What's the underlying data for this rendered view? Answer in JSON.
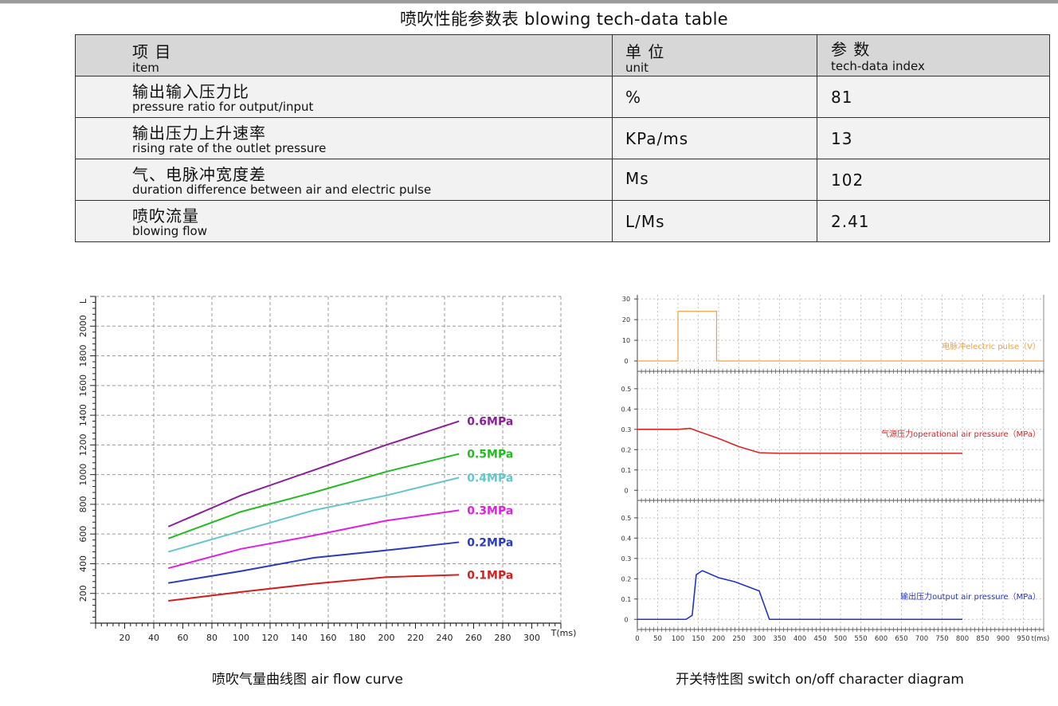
{
  "document": {
    "title": "喷吹性能参数表  blowing tech-data table"
  },
  "table": {
    "headers": [
      {
        "zh": "项  目",
        "en": "item"
      },
      {
        "zh": "单  位",
        "en": "unit"
      },
      {
        "zh": "参  数",
        "en": "tech-data index"
      }
    ],
    "rows": [
      {
        "zh": "输出输入压力比",
        "en": "pressure ratio for output/input",
        "unit": "%",
        "value": "81"
      },
      {
        "zh": "输出压力上升速率",
        "en": "rising rate of the outlet pressure",
        "unit": "KPa/ms",
        "value": "13"
      },
      {
        "zh": "气、电脉冲宽度差",
        "en": "duration difference between air and electric pulse",
        "unit": "Ms",
        "value": "102"
      },
      {
        "zh": "喷吹流量",
        "en": "blowing flow",
        "unit": "L/Ms",
        "value": "2.41"
      }
    ]
  },
  "chart_data": [
    {
      "type": "line",
      "caption": "喷吹气量曲线图  air flow curve",
      "ylabel": "L",
      "xlabel": "T(ms)",
      "xlim": [
        0,
        320
      ],
      "ylim": [
        0,
        2200
      ],
      "x_ticks": [
        20,
        40,
        60,
        80,
        100,
        120,
        140,
        160,
        180,
        200,
        220,
        240,
        260,
        280,
        300
      ],
      "y_ticks": [
        200,
        400,
        600,
        800,
        1000,
        1200,
        1400,
        1600,
        1800,
        2000
      ],
      "grid": true,
      "x": [
        50,
        100,
        150,
        200,
        250
      ],
      "series": [
        {
          "name": "0.6MPa",
          "color": "#8b1f99",
          "values": [
            650,
            860,
            1030,
            1200,
            1360
          ]
        },
        {
          "name": "0.5MPa",
          "color": "#22bb22",
          "values": [
            570,
            750,
            880,
            1020,
            1140
          ]
        },
        {
          "name": "0.4MPa",
          "color": "#66c6cc",
          "values": [
            480,
            620,
            760,
            860,
            980
          ]
        },
        {
          "name": "0.3MPa",
          "color": "#e020e0",
          "values": [
            370,
            500,
            590,
            690,
            760
          ]
        },
        {
          "name": "0.2MPa",
          "color": "#2a3cbb",
          "values": [
            270,
            350,
            440,
            490,
            545
          ]
        },
        {
          "name": "0.1MPa",
          "color": "#d02020",
          "values": [
            150,
            210,
            265,
            310,
            325
          ]
        }
      ]
    },
    {
      "type": "line",
      "caption": "开关特性图  switch on/off character diagram",
      "xlabel": "t(ms)",
      "xlim": [
        0,
        1000
      ],
      "x_ticks": [
        0,
        50,
        100,
        150,
        200,
        250,
        300,
        350,
        400,
        450,
        500,
        550,
        600,
        650,
        700,
        750,
        800,
        850,
        900,
        950
      ],
      "grid": true,
      "panels": [
        {
          "name": "电脉冲electric pulse（V）",
          "color": "#f0a040",
          "ylim": [
            -5,
            32
          ],
          "y_ticks": [
            0,
            10,
            20,
            30
          ],
          "x": [
            0,
            100,
            100,
            195,
            195,
            1000
          ],
          "values": [
            0,
            0,
            24,
            24,
            0,
            0
          ]
        },
        {
          "name": "气源压力operational air pressure（MPa）",
          "color": "#dd2222",
          "ylim": [
            -0.05,
            0.57
          ],
          "y_ticks": [
            0,
            0.1,
            0.2,
            0.3,
            0.4,
            0.5
          ],
          "x": [
            0,
            100,
            130,
            150,
            200,
            250,
            300,
            350,
            800
          ],
          "values": [
            0.3,
            0.3,
            0.305,
            0.29,
            0.255,
            0.215,
            0.185,
            0.182,
            0.182
          ]
        },
        {
          "name": "输出压力output air pressure（MPa）",
          "color": "#2233cc",
          "ylim": [
            -0.05,
            0.57
          ],
          "y_ticks": [
            0,
            0.1,
            0.2,
            0.3,
            0.4,
            0.5
          ],
          "x": [
            0,
            120,
            135,
            145,
            160,
            200,
            240,
            280,
            300,
            325,
            800
          ],
          "values": [
            0,
            0,
            0.02,
            0.22,
            0.24,
            0.205,
            0.185,
            0.155,
            0.14,
            0,
            0
          ]
        }
      ]
    }
  ]
}
